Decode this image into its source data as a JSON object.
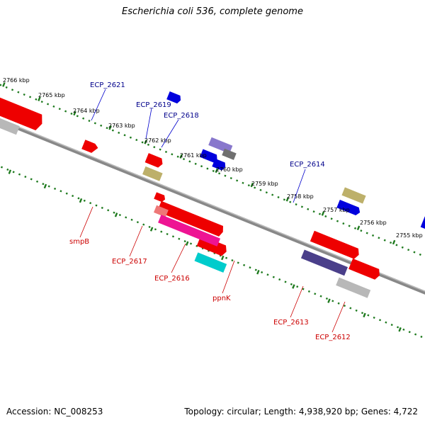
{
  "title": "Escherichia coli 536, complete genome",
  "footer": {
    "accession": "Accession: NC_008253",
    "summary": "Topology: circular; Length: 4,938,920 bp; Genes: 4,722"
  },
  "scale_ticks": [
    "2766 kbp",
    "2765 kbp",
    "2764 kbp",
    "2763 kbp",
    "2762 kbp",
    "2761 kbp",
    "2760 kbp",
    "2759 kbp",
    "2758 kbp",
    "2757 kbp",
    "2756 kbp",
    "2755 kbp"
  ],
  "upper_gene_labels": [
    "ECP_2621",
    "ECP_2619",
    "ECP_2618",
    "ECP_2614"
  ],
  "lower_gene_labels": [
    "smpB",
    "ECP_2617",
    "ECP_2616",
    "ppnK",
    "ECP_2613",
    "ECP_2612"
  ],
  "colors": {
    "backbone": "#888888",
    "tick_green": "#1e7a1e",
    "upper_label": "#00008b",
    "lower_label": "#cc0000",
    "red": "#ee0000",
    "blue": "#0000dd",
    "khaki": "#bdb06a",
    "gray": "#b8b8b8",
    "lavender": "#8877cc",
    "darkgray": "#707070",
    "pink": "#ee1493",
    "cyan": "#00cccc",
    "salmon": "#ee7777",
    "slate": "#4a3f8a",
    "lime": "#99ee22"
  }
}
